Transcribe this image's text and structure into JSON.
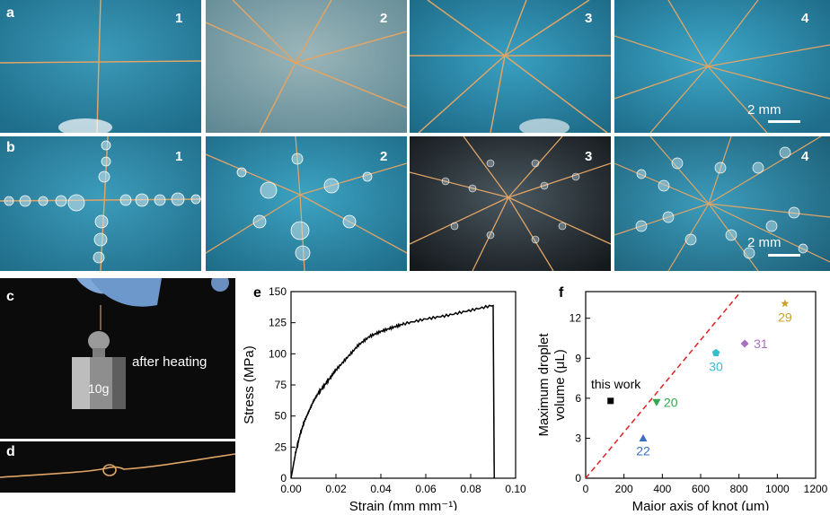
{
  "panels": {
    "a": {
      "label": "a",
      "nums": [
        "1",
        "2",
        "3",
        "4"
      ],
      "scale": "2 mm"
    },
    "b": {
      "label": "b",
      "nums": [
        "1",
        "2",
        "3",
        "4"
      ],
      "scale": "2 mm"
    },
    "c": {
      "label": "c",
      "text_after": "after heating",
      "text_weight": "10g"
    },
    "d": {
      "label": "d"
    },
    "e": {
      "label": "e"
    },
    "f": {
      "label": "f"
    }
  },
  "colors": {
    "photo_blue": "#2f8fae",
    "fiber": "#e0a466",
    "black_bg": "#0b0b0b",
    "line_e": "#000000",
    "fit_line": "#e02020"
  },
  "chart_data": [
    {
      "panel": "e",
      "type": "line",
      "xlabel": "Strain (mm mm⁻¹)",
      "ylabel": "Stress (MPa)",
      "xlim": [
        0,
        0.1
      ],
      "ylim": [
        0,
        150
      ],
      "xticks": [
        "0.00",
        "0.02",
        "0.04",
        "0.06",
        "0.08",
        "0.10"
      ],
      "yticks": [
        "0",
        "25",
        "50",
        "75",
        "100",
        "125",
        "150"
      ],
      "x": [
        0,
        0.002,
        0.004,
        0.006,
        0.008,
        0.01,
        0.012,
        0.015,
        0.018,
        0.02,
        0.025,
        0.03,
        0.035,
        0.04,
        0.045,
        0.05,
        0.06,
        0.07,
        0.08,
        0.09,
        0.0905
      ],
      "y": [
        0,
        20,
        35,
        46,
        54,
        62,
        68,
        75,
        82,
        87,
        97,
        107,
        114,
        118,
        121,
        124,
        128,
        131,
        135,
        139,
        0
      ]
    },
    {
      "panel": "f",
      "type": "scatter",
      "xlabel": "Major axis of knot (μm)",
      "ylabel_line1": "Maximum droplet",
      "ylabel_line2": "volume (μL)",
      "xlim": [
        0,
        1200
      ],
      "ylim": [
        0,
        14
      ],
      "xticks": [
        "0",
        "200",
        "400",
        "600",
        "800",
        "1000",
        "1200"
      ],
      "yticks": [
        "0",
        "3",
        "6",
        "9",
        "12"
      ],
      "points": [
        {
          "label": "this work",
          "x": 130,
          "y": 5.8,
          "marker": "square",
          "color": "#000000"
        },
        {
          "label": "22",
          "x": 300,
          "y": 3.0,
          "marker": "triangle-up",
          "color": "#3a6fc4"
        },
        {
          "label": "20",
          "x": 370,
          "y": 5.7,
          "marker": "triangle-down",
          "color": "#2fa84f"
        },
        {
          "label": "30",
          "x": 680,
          "y": 9.4,
          "marker": "pentagon",
          "color": "#35c0cf"
        },
        {
          "label": "31",
          "x": 830,
          "y": 10.1,
          "marker": "diamond",
          "color": "#a86fc2"
        },
        {
          "label": "29",
          "x": 1040,
          "y": 13.1,
          "marker": "star",
          "color": "#c8a02a"
        }
      ],
      "fit_line": {
        "x": [
          0,
          810
        ],
        "y": [
          0,
          14
        ]
      }
    }
  ]
}
